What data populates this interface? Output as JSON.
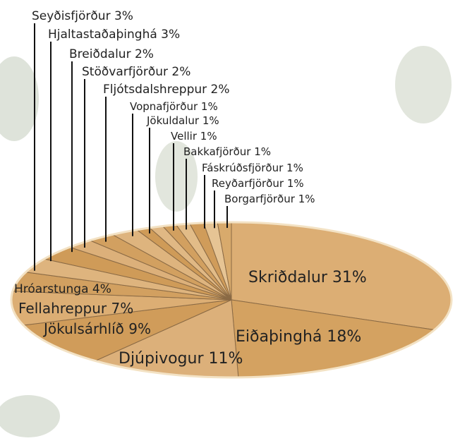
{
  "chart_data": {
    "type": "pie",
    "categories": [
      "Skriðdalur",
      "Eiðaþinghá",
      "Djúpivogur",
      "Jökulsárhlíð",
      "Fellahreppur",
      "Hróarstunga",
      "Seyðisfjörður",
      "Hjaltastaðaþinghá",
      "Breiðdalur",
      "Stöðvarfjörður",
      "Fljótsdalshreppur",
      "Vopnafjörður",
      "Jökuldalur",
      "Vellir",
      "Bakkafjörður",
      "Fáskrúðsfjörður",
      "Reyðarfjörður",
      "Borgarfjörður"
    ],
    "values": [
      31,
      18,
      11,
      9,
      7,
      4,
      3,
      3,
      2,
      2,
      2,
      1,
      1,
      1,
      1,
      1,
      1,
      1
    ],
    "value_labels": [
      "31%",
      "18%",
      "11%",
      "9%",
      "7%",
      "4%",
      "3%",
      "3%",
      "2%",
      "2%",
      "2%",
      "1%",
      "1%",
      "1%",
      "1%",
      "1%",
      "1%",
      "1%"
    ],
    "colors": [
      "#dcae74",
      "#d4a261",
      "#dcb07a",
      "#d09c5a",
      "#dcae74",
      "#d2a060",
      "#deb47e",
      "#cf9b58",
      "#dcb07a",
      "#d2a060",
      "#deb47e",
      "#cf9b58",
      "#e0b884",
      "#d2a060",
      "#e2bc88",
      "#d09c5a",
      "#e6c494",
      "#d8aa6c"
    ]
  }
}
